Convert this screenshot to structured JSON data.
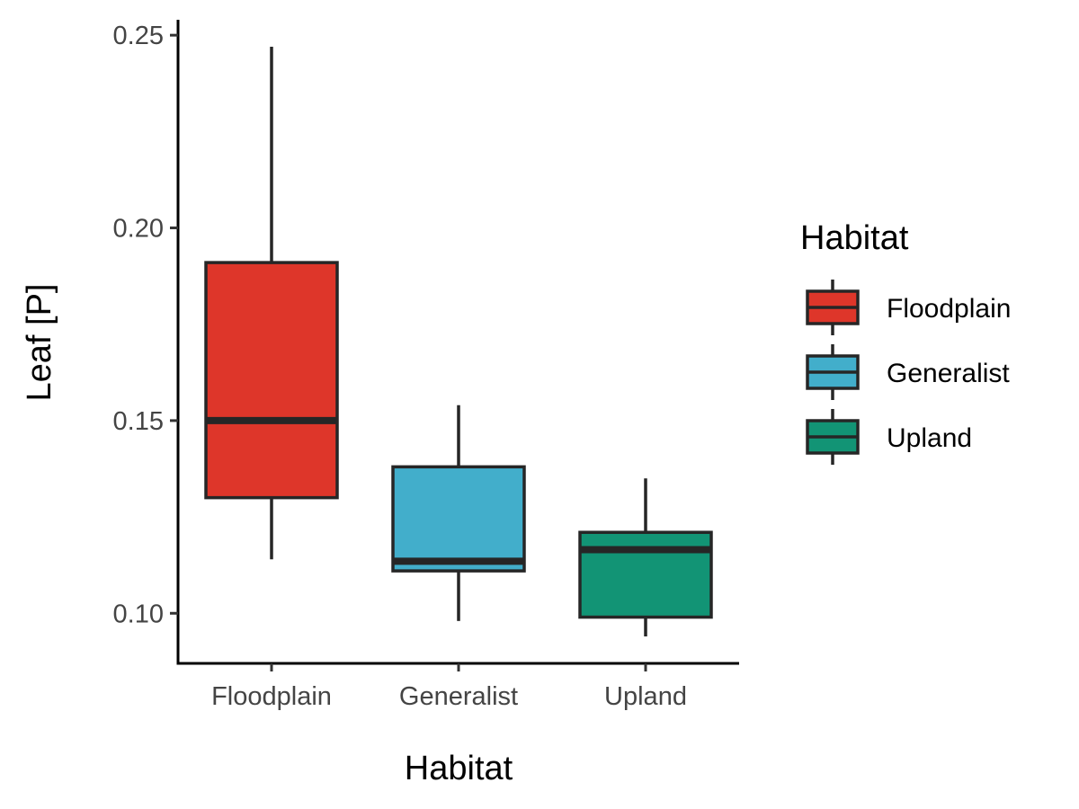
{
  "chart_data": {
    "type": "box",
    "title": "",
    "xlabel": "Habitat",
    "ylabel": "Leaf [P]",
    "ylim": [
      0.087,
      0.254
    ],
    "yticks": [
      0.1,
      0.15,
      0.2,
      0.25
    ],
    "ytick_labels": [
      "0.10",
      "0.15",
      "0.20",
      "0.25"
    ],
    "categories": [
      "Floodplain",
      "Generalist",
      "Upland"
    ],
    "boxes": [
      {
        "category": "Floodplain",
        "min": 0.114,
        "q1": 0.13,
        "median": 0.15,
        "q3": 0.191,
        "max": 0.247,
        "color": "#DE362A"
      },
      {
        "category": "Generalist",
        "min": 0.098,
        "q1": 0.111,
        "median": 0.1135,
        "q3": 0.138,
        "max": 0.154,
        "color": "#42AECB"
      },
      {
        "category": "Upland",
        "min": 0.094,
        "q1": 0.099,
        "median": 0.1165,
        "q3": 0.121,
        "max": 0.135,
        "color": "#129475"
      }
    ],
    "legend": {
      "title": "Habitat",
      "position": "right",
      "entries": [
        "Floodplain",
        "Generalist",
        "Upland"
      ]
    },
    "grid": false
  }
}
